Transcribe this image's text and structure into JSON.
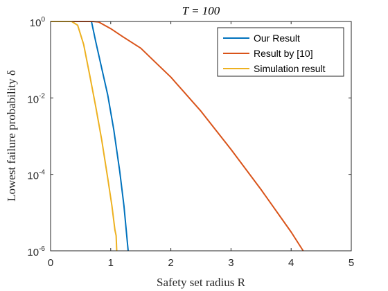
{
  "chart_data": {
    "type": "line",
    "title": "T = 100",
    "xlabel": "Safety set radius R",
    "ylabel": "Lowest failure probability δ",
    "xlim": [
      0,
      5
    ],
    "ylim": [
      1e-06,
      1
    ],
    "yscale": "log",
    "x_ticks": [
      "0",
      "1",
      "2",
      "3",
      "4",
      "5"
    ],
    "y_ticks": [
      {
        "base": "10",
        "exp": "0"
      },
      {
        "base": "10",
        "exp": "-2"
      },
      {
        "base": "10",
        "exp": "-4"
      },
      {
        "base": "10",
        "exp": "-6"
      }
    ],
    "grid": false,
    "legend_position": "top-right",
    "series": [
      {
        "name": "Our Result",
        "color": "#0072BD",
        "points": [
          [
            0,
            1
          ],
          [
            0.68,
            1
          ],
          [
            0.75,
            0.3
          ],
          [
            0.85,
            0.06
          ],
          [
            0.95,
            0.012
          ],
          [
            1.05,
            0.0015
          ],
          [
            1.15,
            0.00012
          ],
          [
            1.22,
            1.5e-05
          ],
          [
            1.29,
            1e-06
          ]
        ]
      },
      {
        "name": "Result by [10]",
        "color": "#D95319",
        "points": [
          [
            0,
            1
          ],
          [
            0.7,
            1
          ],
          [
            0.8,
            0.97
          ],
          [
            1.0,
            0.65
          ],
          [
            1.2,
            0.4
          ],
          [
            1.5,
            0.2
          ],
          [
            1.8,
            0.07
          ],
          [
            2.0,
            0.035
          ],
          [
            2.5,
            0.0045
          ],
          [
            3.0,
            0.00045
          ],
          [
            3.5,
            4e-05
          ],
          [
            4.0,
            3.1e-06
          ],
          [
            4.2,
            1e-06
          ]
        ]
      },
      {
        "name": "Simulation result",
        "color": "#EDB120",
        "points": [
          [
            0,
            1
          ],
          [
            0.35,
            1
          ],
          [
            0.45,
            0.8
          ],
          [
            0.55,
            0.25
          ],
          [
            0.65,
            0.04
          ],
          [
            0.75,
            0.006
          ],
          [
            0.85,
            0.0008
          ],
          [
            0.95,
            8e-05
          ],
          [
            1.02,
            1.5e-05
          ],
          [
            1.07,
            3.5e-06
          ],
          [
            1.09,
            2.5e-06
          ],
          [
            1.1,
            1e-06
          ]
        ]
      }
    ]
  }
}
